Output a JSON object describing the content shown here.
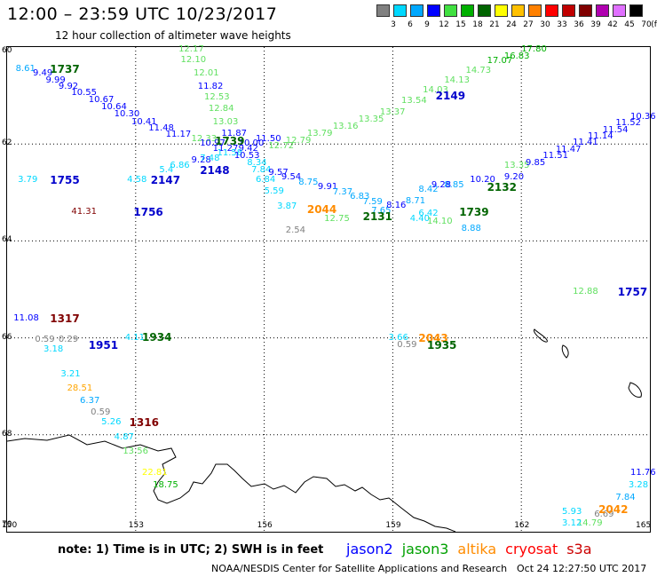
{
  "header": {
    "title": "12:00 – 23:59 UTC 10/23/2017",
    "subtitle": "12 hour collection of altimeter wave heights"
  },
  "colorbar": {
    "ticks": [
      "3",
      "6",
      "9",
      "12",
      "15",
      "18",
      "21",
      "24",
      "27",
      "30",
      "33",
      "36",
      "39",
      "42",
      "45",
      "70"
    ],
    "unit": "(ft)",
    "colors": [
      "#808080",
      "#00d8ff",
      "#00a8ff",
      "#0000ff",
      "#40e040",
      "#00b000",
      "#006400",
      "#ffff00",
      "#ffc000",
      "#ff8000",
      "#ff0000",
      "#c00000",
      "#800000",
      "#b000b0",
      "#e070ff",
      "#000000"
    ]
  },
  "axes": {
    "x_ticks": [
      {
        "label": "150",
        "value": 150
      },
      {
        "label": "153",
        "value": 153
      },
      {
        "label": "156",
        "value": 156
      },
      {
        "label": "159",
        "value": 159
      },
      {
        "label": "162",
        "value": 162
      },
      {
        "label": "165",
        "value": 165
      }
    ],
    "y_ticks": [
      {
        "label": "60",
        "value": 60
      },
      {
        "label": "62",
        "value": 62
      },
      {
        "label": "64",
        "value": 64
      },
      {
        "label": "66",
        "value": 66
      },
      {
        "label": "68",
        "value": 68
      },
      {
        "label": "70",
        "value": 70
      }
    ]
  },
  "observations": [
    {
      "t": "12.17",
      "c": "#60e060",
      "lon": 154.0,
      "lat": 60.05
    },
    {
      "t": "12.10",
      "c": "#60e060",
      "lon": 154.05,
      "lat": 60.28
    },
    {
      "t": "12.01",
      "c": "#60e060",
      "lon": 154.35,
      "lat": 60.55
    },
    {
      "t": "11.82",
      "c": "#0000ff",
      "lon": 154.45,
      "lat": 60.82
    },
    {
      "t": "12.53",
      "c": "#60e060",
      "lon": 154.6,
      "lat": 61.05
    },
    {
      "t": "12.84",
      "c": "#60e060",
      "lon": 154.7,
      "lat": 61.28
    },
    {
      "t": "13.03",
      "c": "#60e060",
      "lon": 154.8,
      "lat": 61.55
    },
    {
      "t": "11.87",
      "c": "#0000ff",
      "lon": 155.0,
      "lat": 61.8
    },
    {
      "t": "12.33",
      "c": "#60e060",
      "lon": 154.3,
      "lat": 61.9
    },
    {
      "t": "10.97",
      "c": "#0000ff",
      "lon": 154.5,
      "lat": 62.0
    },
    {
      "t": "10.00",
      "c": "#0000ff",
      "lon": 155.4,
      "lat": 62.0
    },
    {
      "t": "11.50",
      "c": "#0000ff",
      "lon": 155.8,
      "lat": 61.9
    },
    {
      "t": "11.27",
      "c": "#0000ff",
      "lon": 154.8,
      "lat": 62.1
    },
    {
      "t": "9.42",
      "c": "#0000ff",
      "lon": 155.4,
      "lat": 62.1
    },
    {
      "t": "11.58",
      "c": "#00d8ff",
      "lon": 154.9,
      "lat": 62.2
    },
    {
      "t": "10.53",
      "c": "#0000ff",
      "lon": 155.3,
      "lat": 62.25
    },
    {
      "t": "9.28",
      "c": "#0000ff",
      "lon": 154.3,
      "lat": 62.35
    },
    {
      "t": "7.48",
      "c": "#00d8ff",
      "lon": 154.5,
      "lat": 62.3
    },
    {
      "t": "8.34",
      "c": "#00d8ff",
      "lon": 155.6,
      "lat": 62.4
    },
    {
      "t": "6.86",
      "c": "#00d8ff",
      "lon": 153.8,
      "lat": 62.45
    },
    {
      "t": "5.4",
      "c": "#00d8ff",
      "lon": 153.55,
      "lat": 62.55
    },
    {
      "t": "4.58",
      "c": "#00d8ff",
      "lon": 152.8,
      "lat": 62.75
    },
    {
      "t": "3.79",
      "c": "#00d8ff",
      "lon": 150.25,
      "lat": 62.75
    },
    {
      "t": "8.61",
      "c": "#00a8ff",
      "lon": 150.2,
      "lat": 60.45
    },
    {
      "t": "9.49",
      "c": "#0000ff",
      "lon": 150.6,
      "lat": 60.55
    },
    {
      "t": "9.99",
      "c": "#0000ff",
      "lon": 150.9,
      "lat": 60.7
    },
    {
      "t": "9.92",
      "c": "#0000ff",
      "lon": 151.2,
      "lat": 60.82
    },
    {
      "t": "10.55",
      "c": "#0000ff",
      "lon": 151.5,
      "lat": 60.95
    },
    {
      "t": "10.67",
      "c": "#0000ff",
      "lon": 151.9,
      "lat": 61.1
    },
    {
      "t": "10.64",
      "c": "#0000ff",
      "lon": 152.2,
      "lat": 61.25
    },
    {
      "t": "10.30",
      "c": "#0000ff",
      "lon": 152.5,
      "lat": 61.4
    },
    {
      "t": "10.41",
      "c": "#0000ff",
      "lon": 152.9,
      "lat": 61.55
    },
    {
      "t": "11.48",
      "c": "#0000ff",
      "lon": 153.3,
      "lat": 61.68
    },
    {
      "t": "11.17",
      "c": "#0000ff",
      "lon": 153.7,
      "lat": 61.82
    },
    {
      "t": "41.31",
      "c": "#800000",
      "lon": 151.5,
      "lat": 63.4
    },
    {
      "t": "7.84",
      "c": "#00d8ff",
      "lon": 155.7,
      "lat": 62.55
    },
    {
      "t": "6.84",
      "c": "#00d8ff",
      "lon": 155.8,
      "lat": 62.75
    },
    {
      "t": "9.57",
      "c": "#0000ff",
      "lon": 156.1,
      "lat": 62.6
    },
    {
      "t": "9.54",
      "c": "#0000ff",
      "lon": 156.4,
      "lat": 62.7
    },
    {
      "t": "8.75",
      "c": "#00a8ff",
      "lon": 156.8,
      "lat": 62.8
    },
    {
      "t": "9.91",
      "c": "#0000ff",
      "lon": 157.25,
      "lat": 62.9
    },
    {
      "t": "7.37",
      "c": "#00a8ff",
      "lon": 157.6,
      "lat": 63.0
    },
    {
      "t": "6.83",
      "c": "#00a8ff",
      "lon": 158.0,
      "lat": 63.1
    },
    {
      "t": "7.59",
      "c": "#00a8ff",
      "lon": 158.3,
      "lat": 63.2
    },
    {
      "t": "7.65",
      "c": "#00a8ff",
      "lon": 158.5,
      "lat": 63.38
    },
    {
      "t": "8.16",
      "c": "#0000ff",
      "lon": 158.85,
      "lat": 63.28
    },
    {
      "t": "8.71",
      "c": "#00a8ff",
      "lon": 159.3,
      "lat": 63.18
    },
    {
      "t": "6.42",
      "c": "#00d8ff",
      "lon": 159.6,
      "lat": 63.45
    },
    {
      "t": "8.42",
      "c": "#00a8ff",
      "lon": 159.6,
      "lat": 62.95
    },
    {
      "t": "8.85",
      "c": "#00a8ff",
      "lon": 160.2,
      "lat": 62.85
    },
    {
      "t": "9.28",
      "c": "#0000ff",
      "lon": 159.9,
      "lat": 62.85
    },
    {
      "t": "10.20",
      "c": "#0000ff",
      "lon": 160.8,
      "lat": 62.75
    },
    {
      "t": "9.20",
      "c": "#0000ff",
      "lon": 161.6,
      "lat": 62.7
    },
    {
      "t": "13.35",
      "c": "#60e060",
      "lon": 161.6,
      "lat": 62.45
    },
    {
      "t": "9.85",
      "c": "#0000ff",
      "lon": 162.1,
      "lat": 62.4
    },
    {
      "t": "11.51",
      "c": "#0000ff",
      "lon": 162.5,
      "lat": 62.25
    },
    {
      "t": "11.47",
      "c": "#0000ff",
      "lon": 162.8,
      "lat": 62.12
    },
    {
      "t": "11.41",
      "c": "#0000ff",
      "lon": 163.2,
      "lat": 61.98
    },
    {
      "t": "11.14",
      "c": "#0000ff",
      "lon": 163.55,
      "lat": 61.85
    },
    {
      "t": "11.54",
      "c": "#0000ff",
      "lon": 163.9,
      "lat": 61.72
    },
    {
      "t": "11.52",
      "c": "#0000ff",
      "lon": 164.2,
      "lat": 61.58
    },
    {
      "t": "10.36",
      "c": "#0000ff",
      "lon": 164.6,
      "lat": 61.45
    },
    {
      "t": "3.87",
      "c": "#00d8ff",
      "lon": 156.3,
      "lat": 63.3
    },
    {
      "t": "5.59",
      "c": "#00d8ff",
      "lon": 156.0,
      "lat": 62.98
    },
    {
      "t": "2.54",
      "c": "#808080",
      "lon": 156.5,
      "lat": 63.8
    },
    {
      "t": "12.75",
      "c": "#60e060",
      "lon": 157.4,
      "lat": 63.55
    },
    {
      "t": "4.40",
      "c": "#00d8ff",
      "lon": 159.4,
      "lat": 63.55
    },
    {
      "t": "14.10",
      "c": "#60e060",
      "lon": 159.8,
      "lat": 63.6
    },
    {
      "t": "8.88",
      "c": "#00a8ff",
      "lon": 160.6,
      "lat": 63.75
    },
    {
      "t": "17.80",
      "c": "#00b000",
      "lon": 162.0,
      "lat": 60.05
    },
    {
      "t": "16.83",
      "c": "#00b000",
      "lon": 161.6,
      "lat": 60.2
    },
    {
      "t": "17.07",
      "c": "#00b000",
      "lon": 161.2,
      "lat": 60.3
    },
    {
      "t": "14.73",
      "c": "#60e060",
      "lon": 160.7,
      "lat": 60.5
    },
    {
      "t": "14.13",
      "c": "#60e060",
      "lon": 160.2,
      "lat": 60.7
    },
    {
      "t": "14.03",
      "c": "#60e060",
      "lon": 159.7,
      "lat": 60.9
    },
    {
      "t": "13.54",
      "c": "#60e060",
      "lon": 159.2,
      "lat": 61.12
    },
    {
      "t": "13.37",
      "c": "#60e060",
      "lon": 158.7,
      "lat": 61.35
    },
    {
      "t": "13.35",
      "c": "#60e060",
      "lon": 158.2,
      "lat": 61.5
    },
    {
      "t": "13.16",
      "c": "#60e060",
      "lon": 157.6,
      "lat": 61.65
    },
    {
      "t": "13.79",
      "c": "#60e060",
      "lon": 157.0,
      "lat": 61.8
    },
    {
      "t": "12.79",
      "c": "#60e060",
      "lon": 156.5,
      "lat": 61.95
    },
    {
      "t": "12.72",
      "c": "#60e060",
      "lon": 156.1,
      "lat": 62.05
    },
    {
      "t": "11.08",
      "c": "#0000ff",
      "lon": 150.15,
      "lat": 65.6
    },
    {
      "t": "0.59",
      "c": "#808080",
      "lon": 150.65,
      "lat": 66.05
    },
    {
      "t": "0.29",
      "c": "#808080",
      "lon": 151.2,
      "lat": 66.05
    },
    {
      "t": "3.18",
      "c": "#00d8ff",
      "lon": 150.85,
      "lat": 66.25
    },
    {
      "t": "4.11",
      "c": "#00d8ff",
      "lon": 152.75,
      "lat": 66.0
    },
    {
      "t": "3.21",
      "c": "#00d8ff",
      "lon": 151.25,
      "lat": 66.75
    },
    {
      "t": "28.51",
      "c": "#ffa500",
      "lon": 151.4,
      "lat": 67.05
    },
    {
      "t": "6.37",
      "c": "#00a8ff",
      "lon": 151.7,
      "lat": 67.3
    },
    {
      "t": "0.59",
      "c": "#808080",
      "lon": 151.95,
      "lat": 67.55
    },
    {
      "t": "5.26",
      "c": "#00d8ff",
      "lon": 152.2,
      "lat": 67.75
    },
    {
      "t": "4.87",
      "c": "#00d8ff",
      "lon": 152.5,
      "lat": 68.05
    },
    {
      "t": "13.56",
      "c": "#60e060",
      "lon": 152.7,
      "lat": 68.35
    },
    {
      "t": "22.81",
      "c": "#ffff00",
      "lon": 153.15,
      "lat": 68.8
    },
    {
      "t": "18.75",
      "c": "#00b000",
      "lon": 153.4,
      "lat": 69.05
    },
    {
      "t": "3.66",
      "c": "#00d8ff",
      "lon": 158.9,
      "lat": 66.0
    },
    {
      "t": "0.59",
      "c": "#808080",
      "lon": 159.1,
      "lat": 66.15
    },
    {
      "t": "12.88",
      "c": "#60e060",
      "lon": 163.2,
      "lat": 65.05
    },
    {
      "t": "11.76",
      "c": "#0000ff",
      "lon": 165.0,
      "lat": 68.8
    },
    {
      "t": "3.28",
      "c": "#00d8ff",
      "lon": 164.5,
      "lat": 69.05
    },
    {
      "t": "7.84",
      "c": "#00a8ff",
      "lon": 164.2,
      "lat": 69.3
    },
    {
      "t": "5.93",
      "c": "#00d8ff",
      "lon": 162.95,
      "lat": 69.6
    },
    {
      "t": "6.69",
      "c": "#808080",
      "lon": 163.7,
      "lat": 69.65
    },
    {
      "t": "14.79",
      "c": "#60e060",
      "lon": 163.3,
      "lat": 69.85
    },
    {
      "t": "3.12",
      "c": "#00d8ff",
      "lon": 162.95,
      "lat": 70.1
    }
  ],
  "passes": [
    {
      "t": "1737",
      "c": "#006400",
      "lon": 151.0,
      "lat": 60.45
    },
    {
      "t": "1755",
      "c": "#0000cc",
      "lon": 151.0,
      "lat": 62.75
    },
    {
      "t": "2147",
      "c": "#0000cc",
      "lon": 153.35,
      "lat": 62.75
    },
    {
      "t": "2148",
      "c": "#0000cc",
      "lon": 154.5,
      "lat": 62.55
    },
    {
      "t": "1756",
      "c": "#0000cc",
      "lon": 152.95,
      "lat": 63.4
    },
    {
      "t": "1739",
      "c": "#006400",
      "lon": 154.85,
      "lat": 61.95
    },
    {
      "t": "2149",
      "c": "#0000cc",
      "lon": 160.0,
      "lat": 61.0
    },
    {
      "t": "2132",
      "c": "#006400",
      "lon": 161.2,
      "lat": 62.9
    },
    {
      "t": "2044",
      "c": "#ff8c00",
      "lon": 157.0,
      "lat": 63.35
    },
    {
      "t": "2131",
      "c": "#006400",
      "lon": 158.3,
      "lat": 63.5
    },
    {
      "t": "1739",
      "c": "#006400",
      "lon": 160.55,
      "lat": 63.4
    },
    {
      "t": "1317",
      "c": "#800000",
      "lon": 151.0,
      "lat": 65.6
    },
    {
      "t": "1951",
      "c": "#0000cc",
      "lon": 151.9,
      "lat": 66.15
    },
    {
      "t": "1934",
      "c": "#006400",
      "lon": 153.15,
      "lat": 65.98
    },
    {
      "t": "2043",
      "c": "#ff8c00",
      "lon": 159.6,
      "lat": 66.0
    },
    {
      "t": "1935",
      "c": "#006400",
      "lon": 159.8,
      "lat": 66.15
    },
    {
      "t": "1757",
      "c": "#0000cc",
      "lon": 164.25,
      "lat": 65.05
    },
    {
      "t": "1316",
      "c": "#800000",
      "lon": 152.85,
      "lat": 67.75
    },
    {
      "t": "2042",
      "c": "#ff8c00",
      "lon": 163.8,
      "lat": 69.55
    }
  ],
  "note": "note:  1) Time is in UTC;  2) SWH is in feet",
  "legend": [
    {
      "label": "jason2",
      "color": "#0000ff"
    },
    {
      "label": "jason3",
      "color": "#00a000"
    },
    {
      "label": "altika",
      "color": "#ff8c00"
    },
    {
      "label": "cryosat",
      "color": "#ff0000"
    },
    {
      "label": "s3a",
      "color": "#cc0000"
    }
  ],
  "footer": "NOAA/NESDIS Center for Satellite Applications and Research",
  "timestamp": "Oct 24 12:27:50 UTC 2017"
}
